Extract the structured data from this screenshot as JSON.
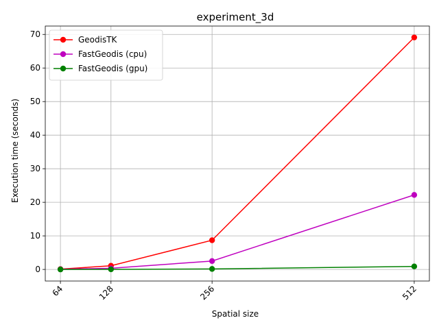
{
  "chart_data": {
    "type": "line",
    "title": "experiment_3d",
    "xlabel": "Spatial size",
    "ylabel": "Execution time (seconds)",
    "x": [
      64,
      128,
      256,
      512
    ],
    "x_tick_labels": [
      "64",
      "128",
      "256",
      "512"
    ],
    "xlim": [
      44.8,
      531.2
    ],
    "ylim": [
      -3.45,
      72.5
    ],
    "y_ticks": [
      0,
      10,
      20,
      30,
      40,
      50,
      60,
      70
    ],
    "y_tick_labels": [
      "0",
      "10",
      "20",
      "30",
      "40",
      "50",
      "60",
      "70"
    ],
    "grid": true,
    "legend_position": "upper-left",
    "series": [
      {
        "name": "GeodisTK",
        "color": "#ff0000",
        "values": [
          0.1,
          1.1,
          8.7,
          69.1
        ]
      },
      {
        "name": "FastGeodis (cpu)",
        "color": "#bf00bf",
        "values": [
          0.05,
          0.35,
          2.5,
          22.2
        ]
      },
      {
        "name": "FastGeodis (gpu)",
        "color": "#008000",
        "values": [
          0.0,
          0.03,
          0.15,
          0.9
        ]
      }
    ]
  }
}
